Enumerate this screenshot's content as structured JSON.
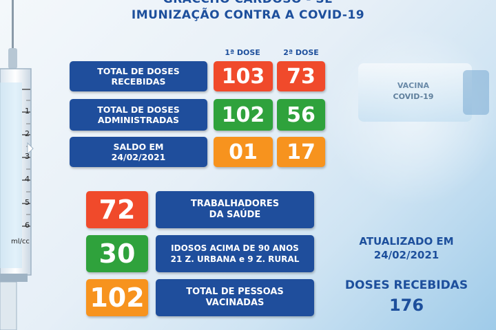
{
  "header": {
    "line1": "GRACCHO CARDOSO - SE",
    "line2": "IMUNIZAÇÃO CONTRA A COVID-19"
  },
  "doses_header": {
    "first": "1ª DOSE",
    "second": "2ª DOSE"
  },
  "rows": [
    {
      "label_line1": "TOTAL DE DOSES",
      "label_line2": "RECEBIDAS",
      "first": "103",
      "second": "73"
    },
    {
      "label_line1": "TOTAL DE DOSES",
      "label_line2": "ADMINISTRADAS",
      "first": "102",
      "second": "56"
    },
    {
      "label_line1": "SALDO EM",
      "label_line2": "24/02/2021",
      "first": "01",
      "second": "17"
    }
  ],
  "stats": [
    {
      "value": "72",
      "label_line1": "TRABALHADORES",
      "label_line2": "DA SAÚDE"
    },
    {
      "value": "30",
      "label_line1": "IDOSOS ACIMA DE 90 ANOS",
      "label_line2": "21 Z. URBANA e 9 Z. RURAL"
    },
    {
      "value": "102",
      "label_line1": "TOTAL DE PESSOAS",
      "label_line2": "VACINADAS"
    }
  ],
  "updated": {
    "line1": "ATUALIZADO EM",
    "line2": "24/02/2021"
  },
  "doses_received": {
    "label": "DOSES RECEBIDAS",
    "value": "176"
  },
  "vial": {
    "line1": "VACINA",
    "line2": "COVID-19"
  },
  "syringe_scale": [
    "1",
    "2",
    "3",
    "4",
    "5",
    "6",
    "ml/cc"
  ],
  "colors": {
    "blue": "#1f4e9c",
    "red": "#f04a2b",
    "green": "#2fa23c",
    "orange": "#f7931e"
  }
}
